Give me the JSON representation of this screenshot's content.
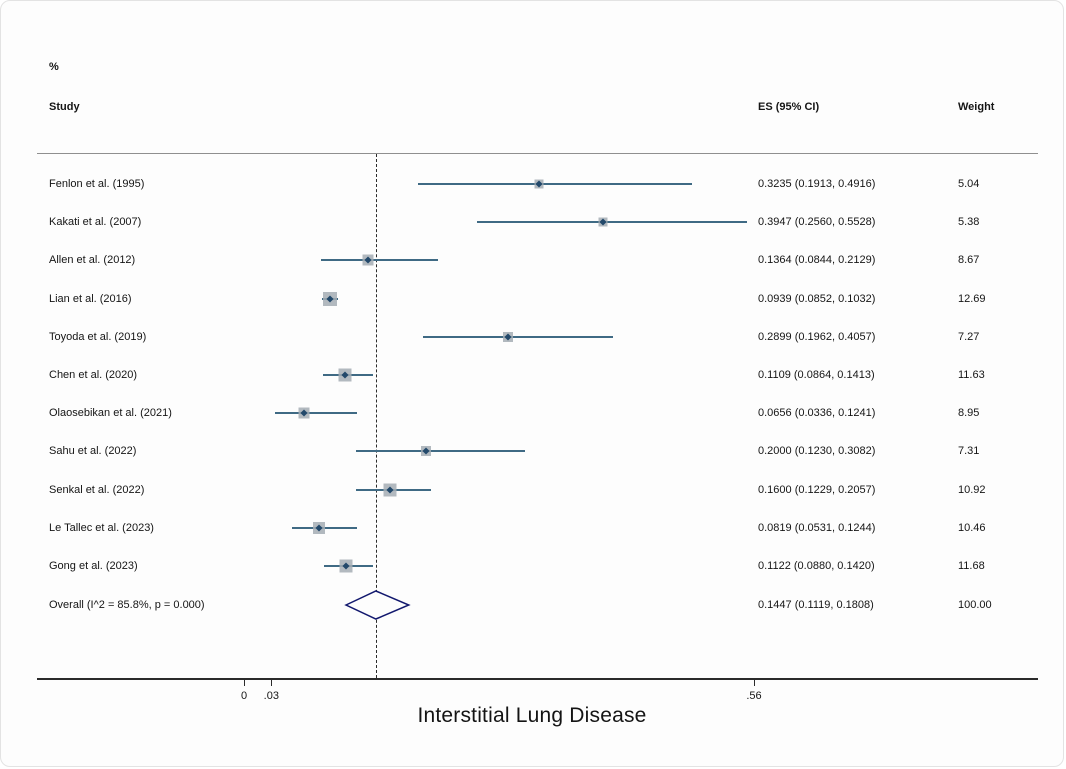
{
  "columns": {
    "study": "Study",
    "es": "ES (95% CI)",
    "percent": "%",
    "weight": "Weight"
  },
  "chart_data": {
    "type": "forest",
    "title": "Interstitial Lung Disease",
    "xlabel": "Interstitial Lung Disease",
    "x_ticks": [
      {
        "label": "0",
        "value": 0
      },
      {
        "label": ".03",
        "value": 0.03
      },
      {
        "label": ".56",
        "value": 0.56
      }
    ],
    "null_line_value": 0.1447,
    "x_range": [
      -0.23,
      0.87
    ],
    "grid": false,
    "studies": [
      {
        "label": "Fenlon et al. (1995)",
        "es": 0.3235,
        "lo": 0.1913,
        "hi": 0.4916,
        "es_text": "0.3235 (0.1913, 0.4916)",
        "weight": 5.04,
        "weight_text": "5.04"
      },
      {
        "label": "Kakati et al. (2007)",
        "es": 0.3947,
        "lo": 0.256,
        "hi": 0.5528,
        "es_text": "0.3947 (0.2560, 0.5528)",
        "weight": 5.38,
        "weight_text": "5.38"
      },
      {
        "label": "Allen et al. (2012)",
        "es": 0.1364,
        "lo": 0.0844,
        "hi": 0.2129,
        "es_text": "0.1364 (0.0844, 0.2129)",
        "weight": 8.67,
        "weight_text": "8.67"
      },
      {
        "label": "Lian et al. (2016)",
        "es": 0.0939,
        "lo": 0.0852,
        "hi": 0.1032,
        "es_text": "0.0939 (0.0852, 0.1032)",
        "weight": 12.69,
        "weight_text": "12.69"
      },
      {
        "label": "Toyoda et al. (2019)",
        "es": 0.2899,
        "lo": 0.1962,
        "hi": 0.4057,
        "es_text": "0.2899 (0.1962, 0.4057)",
        "weight": 7.27,
        "weight_text": "7.27"
      },
      {
        "label": "Chen et al. (2020)",
        "es": 0.1109,
        "lo": 0.0864,
        "hi": 0.1413,
        "es_text": "0.1109 (0.0864, 0.1413)",
        "weight": 11.63,
        "weight_text": "11.63"
      },
      {
        "label": "Olaosebikan et al. (2021)",
        "es": 0.0656,
        "lo": 0.0336,
        "hi": 0.1241,
        "es_text": "0.0656 (0.0336, 0.1241)",
        "weight": 8.95,
        "weight_text": "8.95"
      },
      {
        "label": "Sahu et al. (2022)",
        "es": 0.2,
        "lo": 0.123,
        "hi": 0.3082,
        "es_text": "0.2000 (0.1230, 0.3082)",
        "weight": 7.31,
        "weight_text": "7.31"
      },
      {
        "label": "Senkal et al. (2022)",
        "es": 0.16,
        "lo": 0.1229,
        "hi": 0.2057,
        "es_text": "0.1600 (0.1229, 0.2057)",
        "weight": 10.92,
        "weight_text": "10.92"
      },
      {
        "label": "Le Tallec et al. (2023)",
        "es": 0.0819,
        "lo": 0.0531,
        "hi": 0.1244,
        "es_text": "0.0819 (0.0531, 0.1244)",
        "weight": 10.46,
        "weight_text": "10.46"
      },
      {
        "label": "Gong et al. (2023)",
        "es": 0.1122,
        "lo": 0.088,
        "hi": 0.142,
        "es_text": "0.1122 (0.0880, 0.1420)",
        "weight": 11.68,
        "weight_text": "11.68"
      }
    ],
    "overall": {
      "label": "Overall  (I^2 = 85.8%, p = 0.000)",
      "es": 0.1447,
      "lo": 0.1119,
      "hi": 0.1808,
      "es_text": "0.1447 (0.1119, 0.1808)",
      "weight_text": "100.00"
    },
    "colors": {
      "ci_line": "#3f6a84",
      "marker_fill": "#a5adb4",
      "marker_dot": "#23496b",
      "diamond_stroke": "#12186e",
      "diamond_fill": "#fdfdfd",
      "dashed_line": "#2b2b2b"
    },
    "legend": null
  }
}
